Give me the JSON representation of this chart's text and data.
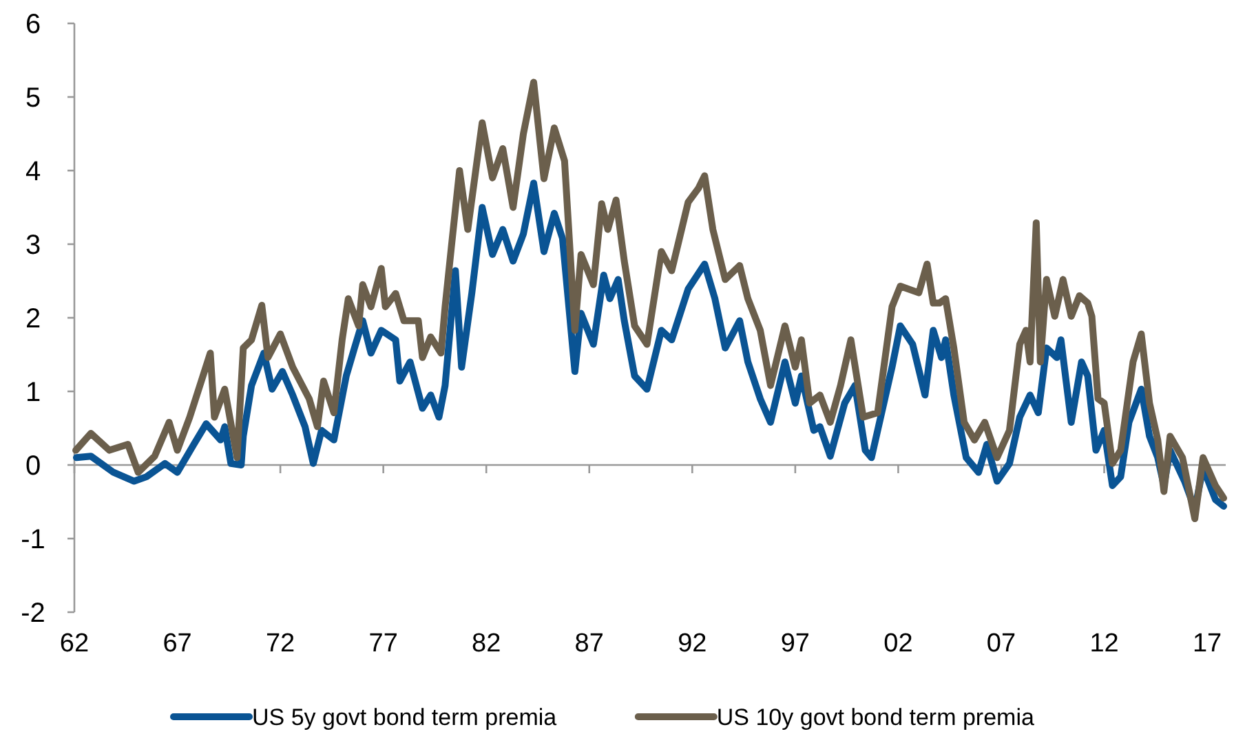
{
  "chart_data": {
    "type": "line",
    "xlim": [
      1962,
      2017.9
    ],
    "ylim": [
      -2,
      6
    ],
    "xticks": [
      {
        "value": 1962,
        "label": "62"
      },
      {
        "value": 1967,
        "label": "67"
      },
      {
        "value": 1972,
        "label": "72"
      },
      {
        "value": 1977,
        "label": "77"
      },
      {
        "value": 1982,
        "label": "82"
      },
      {
        "value": 1987,
        "label": "87"
      },
      {
        "value": 1992,
        "label": "92"
      },
      {
        "value": 1997,
        "label": "97"
      },
      {
        "value": 2002,
        "label": "02"
      },
      {
        "value": 2007,
        "label": "07"
      },
      {
        "value": 2012,
        "label": "12"
      },
      {
        "value": 2017,
        "label": "17"
      }
    ],
    "yticks": [
      -2,
      -1,
      0,
      1,
      2,
      3,
      4,
      5,
      6
    ],
    "legend": "bottom",
    "marker": "none",
    "line_style": "solid",
    "series": [
      {
        "name": "US 5y govt bond term premia",
        "color": "#0a5494",
        "x": [
          1962.1,
          1962.8,
          1963.9,
          1964.9,
          1965.5,
          1966.4,
          1967.0,
          1967.8,
          1968.4,
          1969.1,
          1969.3,
          1969.6,
          1970.1,
          1970.2,
          1970.6,
          1971.2,
          1971.6,
          1972.1,
          1972.6,
          1973.2,
          1973.6,
          1974.0,
          1974.6,
          1975.2,
          1975.6,
          1976.0,
          1976.4,
          1976.9,
          1977.6,
          1977.8,
          1978.3,
          1978.9,
          1979.3,
          1979.7,
          1980.0,
          1980.5,
          1980.8,
          1981.3,
          1981.8,
          1982.3,
          1982.8,
          1983.3,
          1983.8,
          1984.3,
          1984.8,
          1985.3,
          1985.7,
          1986.3,
          1986.6,
          1987.2,
          1987.7,
          1988.0,
          1988.4,
          1988.7,
          1989.2,
          1989.8,
          1990.5,
          1991.0,
          1991.8,
          1992.6,
          1993.1,
          1993.6,
          1994.3,
          1994.7,
          1995.3,
          1995.8,
          1996.5,
          1997.0,
          1997.3,
          1997.9,
          1998.2,
          1998.7,
          1999.4,
          1999.9,
          2000.4,
          2000.7,
          2001.7,
          2002.1,
          2002.7,
          2003.3,
          2003.7,
          2004.1,
          2004.3,
          2004.7,
          2005.3,
          2005.9,
          2006.3,
          2006.8,
          2007.4,
          2007.9,
          2008.4,
          2008.8,
          2009.2,
          2009.7,
          2009.9,
          2010.4,
          2010.9,
          2011.2,
          2011.6,
          2012.0,
          2012.4,
          2012.8,
          2013.2,
          2013.8,
          2014.2,
          2014.6,
          2014.9,
          2015.2,
          2015.9,
          2016.4,
          2016.8,
          2017.4,
          2017.8
        ],
        "values": [
          0.1,
          0.12,
          -0.1,
          -0.22,
          -0.16,
          0.02,
          -0.1,
          0.28,
          0.56,
          0.34,
          0.52,
          0.02,
          0,
          0.39,
          1.08,
          1.52,
          1.03,
          1.27,
          0.95,
          0.52,
          0.02,
          0.47,
          0.34,
          1.21,
          1.59,
          1.96,
          1.52,
          1.83,
          1.7,
          1.14,
          1.4,
          0.77,
          0.95,
          0.65,
          1.08,
          2.64,
          1.33,
          2.34,
          3.5,
          2.86,
          3.2,
          2.77,
          3.14,
          3.83,
          2.9,
          3.42,
          3.08,
          1.27,
          2.06,
          1.64,
          2.58,
          2.26,
          2.52,
          1.96,
          1.21,
          1.03,
          1.83,
          1.7,
          2.39,
          2.73,
          2.26,
          1.59,
          1.96,
          1.4,
          0.9,
          0.58,
          1.4,
          0.84,
          1.21,
          0.47,
          0.52,
          0.12,
          0.84,
          1.08,
          0.2,
          0.1,
          1.33,
          1.89,
          1.64,
          0.95,
          1.83,
          1.46,
          1.7,
          0.95,
          0.1,
          -0.1,
          0.28,
          -0.22,
          0.02,
          0.65,
          0.95,
          0.71,
          1.59,
          1.46,
          1.7,
          0.58,
          1.4,
          1.21,
          0.2,
          0.47,
          -0.28,
          -0.16,
          0.58,
          1.03,
          0.39,
          0.1,
          -0.28,
          0.2,
          -0.22,
          -0.6,
          -0.04,
          -0.47,
          -0.56
        ]
      },
      {
        "name": "US 10y govt bond term premia",
        "color": "#6b5f4c",
        "x": [
          1962.07,
          1962.8,
          1963.7,
          1964.6,
          1965.1,
          1965.9,
          1966.6,
          1967.0,
          1967.6,
          1968.6,
          1968.8,
          1969.3,
          1969.9,
          1970.2,
          1970.6,
          1971.1,
          1971.4,
          1972.0,
          1972.6,
          1973.4,
          1973.8,
          1974.1,
          1974.6,
          1975.0,
          1975.3,
          1975.8,
          1976.0,
          1976.4,
          1976.9,
          1977.1,
          1977.6,
          1978.0,
          1978.7,
          1978.9,
          1979.3,
          1979.8,
          1980.0,
          1980.3,
          1980.7,
          1981.1,
          1981.8,
          1982.3,
          1982.8,
          1983.3,
          1983.8,
          1984.3,
          1984.8,
          1985.3,
          1985.8,
          1986.3,
          1986.6,
          1987.2,
          1987.6,
          1987.9,
          1988.3,
          1988.7,
          1989.2,
          1989.8,
          1990.5,
          1991.0,
          1991.8,
          1992.3,
          1992.6,
          1993.0,
          1993.6,
          1994.3,
          1994.7,
          1995.3,
          1995.8,
          1996.5,
          1997.0,
          1997.3,
          1997.7,
          1998.2,
          1998.7,
          1999.2,
          1999.7,
          2000.3,
          2001.0,
          2001.7,
          2002.1,
          2003.0,
          2003.4,
          2003.7,
          2004.0,
          2004.3,
          2004.7,
          2005.2,
          2005.7,
          2006.2,
          2006.8,
          2007.4,
          2007.9,
          2008.2,
          2008.4,
          2008.7,
          2008.9,
          2009.2,
          2009.6,
          2010.0,
          2010.4,
          2010.8,
          2011.2,
          2011.4,
          2011.7,
          2012.0,
          2012.4,
          2012.8,
          2013.4,
          2013.8,
          2014.2,
          2014.6,
          2014.9,
          2015.2,
          2015.8,
          2016.4,
          2016.8,
          2017.4,
          2017.8
        ],
        "values": [
          0.2,
          0.43,
          0.2,
          0.28,
          -0.1,
          0.12,
          0.58,
          0.2,
          0.65,
          1.52,
          0.65,
          1.03,
          0.1,
          1.59,
          1.7,
          2.17,
          1.46,
          1.78,
          1.33,
          0.9,
          0.52,
          1.14,
          0.71,
          1.7,
          2.26,
          1.89,
          2.45,
          2.15,
          2.67,
          2.15,
          2.33,
          1.96,
          1.96,
          1.46,
          1.74,
          1.52,
          2.15,
          2.95,
          4.0,
          3.2,
          4.65,
          3.9,
          4.3,
          3.5,
          4.5,
          5.2,
          3.89,
          4.58,
          4.13,
          1.83,
          2.86,
          2.45,
          3.55,
          3.2,
          3.6,
          2.77,
          1.89,
          1.64,
          2.9,
          2.64,
          3.57,
          3.76,
          3.93,
          3.2,
          2.52,
          2.71,
          2.26,
          1.83,
          1.08,
          1.89,
          1.33,
          1.7,
          0.84,
          0.95,
          0.58,
          1.08,
          1.7,
          0.65,
          0.71,
          2.15,
          2.43,
          2.34,
          2.73,
          2.2,
          2.2,
          2.26,
          1.59,
          0.58,
          0.34,
          0.58,
          0.1,
          0.47,
          1.64,
          1.83,
          1.4,
          3.29,
          1.4,
          2.52,
          2.02,
          2.52,
          2.02,
          2.3,
          2.2,
          2.02,
          0.9,
          0.84,
          0.02,
          0.2,
          1.4,
          1.78,
          0.84,
          0.34,
          -0.36,
          0.39,
          0.1,
          -0.73,
          0.1,
          -0.28,
          -0.45
        ]
      }
    ]
  }
}
